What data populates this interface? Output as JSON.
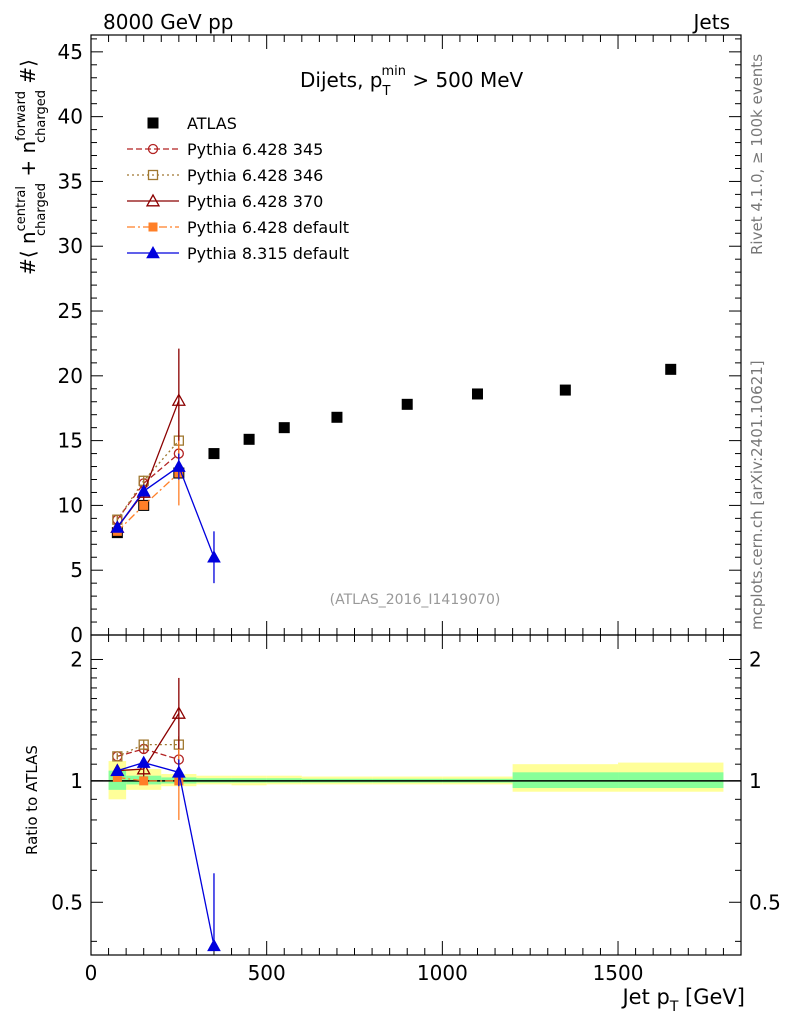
{
  "header": {
    "left_title": "8000 GeV pp",
    "right_title": "Jets",
    "plot_title_main": "Dijets, p",
    "plot_title_sub": "T",
    "plot_title_sup": "min",
    "plot_title_tail": " > 500 MeV",
    "ref_label": "(ATLAS_2016_I1419070)",
    "side_label_top": "Rivet 4.1.0, ≥ 100k events",
    "side_label_bottom": "mcplots.cern.ch [arXiv:2401.10621]"
  },
  "axes": {
    "ylabel_main": "#⟨ n",
    "ylabel_main_sup1": "central",
    "ylabel_main_sub1": "charged",
    "ylabel_main_mid": " + n",
    "ylabel_main_sup2": "forward",
    "ylabel_main_sub2": "charged",
    "ylabel_main_tail": " #⟩",
    "ylabel_ratio": "Ratio to ATLAS",
    "xlabel": "Jet p",
    "xlabel_sub": "T",
    "xlabel_tail": " [GeV]"
  },
  "chart_data": [
    {
      "type": "scatter",
      "panel": "main",
      "xlim": [
        0,
        1850
      ],
      "ylim": [
        0,
        46.3
      ],
      "yticks": [
        0,
        5,
        10,
        15,
        20,
        25,
        30,
        35,
        40,
        45
      ],
      "xticks": [
        0,
        500,
        1000,
        1500
      ],
      "series": [
        {
          "name": "ATLAS",
          "style": "data",
          "color": "#000000",
          "x": [
            75,
            150,
            250,
            350,
            450,
            550,
            700,
            900,
            1100,
            1350,
            1650
          ],
          "y": [
            7.9,
            10.0,
            12.5,
            14.0,
            15.1,
            16.0,
            16.8,
            17.8,
            18.6,
            18.9,
            20.5
          ]
        },
        {
          "name": "Pythia 6.428 345",
          "style": "circle",
          "color": "#b22222",
          "dash": "6,3",
          "x": [
            75,
            150,
            250
          ],
          "y": [
            8.9,
            11.7,
            14.0
          ],
          "err": [
            0.3,
            0.4,
            0.7
          ]
        },
        {
          "name": "Pythia 6.428 346",
          "style": "square",
          "color": "#a07830",
          "dash": "2,3",
          "x": [
            75,
            150,
            250
          ],
          "y": [
            8.9,
            11.9,
            15.0
          ],
          "err": [
            0.3,
            0.4,
            0.8
          ]
        },
        {
          "name": "Pythia 6.428 370",
          "style": "triangle-open",
          "color": "#8b0000",
          "dash": "",
          "x": [
            75,
            150,
            250
          ],
          "y": [
            8.3,
            11.0,
            18.1
          ],
          "err": [
            0.3,
            0.6,
            4.0
          ]
        },
        {
          "name": "Pythia 6.428 default",
          "style": "square-filled",
          "color": "#ff7f27",
          "dash": "8,3,2,3",
          "x": [
            75,
            150,
            250
          ],
          "y": [
            8.0,
            10.0,
            12.5
          ],
          "err": [
            0.3,
            0.3,
            2.5
          ]
        },
        {
          "name": "Pythia 8.315 default",
          "style": "triangle-filled",
          "color": "#0000dd",
          "dash": "",
          "x": [
            75,
            150,
            250,
            350
          ],
          "y": [
            8.3,
            11.1,
            13.0,
            6.0
          ],
          "err": [
            0.3,
            0.4,
            1.0,
            2.0
          ]
        }
      ],
      "legend_position": "top-left"
    },
    {
      "type": "scatter",
      "panel": "ratio",
      "xlim": [
        0,
        1850
      ],
      "ylim": [
        0.37,
        2.3
      ],
      "yscale": "log",
      "yticks": [
        0.5,
        1,
        2
      ],
      "bands": [
        {
          "x0": 50,
          "x1": 100,
          "yellow": [
            0.9,
            1.12
          ],
          "green": [
            0.95,
            1.06
          ]
        },
        {
          "x0": 100,
          "x1": 200,
          "yellow": [
            0.95,
            1.07
          ],
          "green": [
            0.98,
            1.03
          ]
        },
        {
          "x0": 200,
          "x1": 300,
          "yellow": [
            0.97,
            1.04
          ],
          "green": [
            0.985,
            1.02
          ]
        },
        {
          "x0": 300,
          "x1": 400,
          "yellow": [
            0.98,
            1.03
          ],
          "green": [
            0.99,
            1.015
          ]
        },
        {
          "x0": 400,
          "x1": 500,
          "yellow": [
            0.975,
            1.03
          ],
          "green": [
            0.99,
            1.015
          ]
        },
        {
          "x0": 500,
          "x1": 600,
          "yellow": [
            0.98,
            1.03
          ],
          "green": [
            0.99,
            1.015
          ]
        },
        {
          "x0": 600,
          "x1": 800,
          "yellow": [
            0.98,
            1.025
          ],
          "green": [
            0.99,
            1.012
          ]
        },
        {
          "x0": 800,
          "x1": 1000,
          "yellow": [
            0.98,
            1.025
          ],
          "green": [
            0.99,
            1.012
          ]
        },
        {
          "x0": 1000,
          "x1": 1200,
          "yellow": [
            0.98,
            1.025
          ],
          "green": [
            0.99,
            1.012
          ]
        },
        {
          "x0": 1200,
          "x1": 1500,
          "yellow": [
            0.94,
            1.1
          ],
          "green": [
            0.96,
            1.05
          ]
        },
        {
          "x0": 1500,
          "x1": 1800,
          "yellow": [
            0.94,
            1.11
          ],
          "green": [
            0.96,
            1.05
          ]
        }
      ],
      "series": [
        {
          "name": "Pythia 6.428 345",
          "x": [
            75,
            150,
            250
          ],
          "y": [
            1.15,
            1.2,
            1.13
          ],
          "err": [
            0.02,
            0.03,
            0.05
          ]
        },
        {
          "name": "Pythia 6.428 346",
          "x": [
            75,
            150,
            250
          ],
          "y": [
            1.15,
            1.23,
            1.23
          ],
          "err": [
            0.02,
            0.03,
            0.06
          ]
        },
        {
          "name": "Pythia 6.428 370",
          "x": [
            75,
            150,
            250
          ],
          "y": [
            1.06,
            1.07,
            1.47
          ],
          "err": [
            0.02,
            0.05,
            0.33
          ]
        },
        {
          "name": "Pythia 6.428 default",
          "x": [
            75,
            150,
            250
          ],
          "y": [
            1.02,
            1.0,
            1.0
          ],
          "err": [
            0.02,
            0.02,
            0.2
          ]
        },
        {
          "name": "Pythia 8.315 default",
          "x": [
            75,
            150,
            250,
            350
          ],
          "y": [
            1.06,
            1.11,
            1.05,
            0.39
          ],
          "err": [
            0.02,
            0.03,
            0.08,
            0.2
          ]
        }
      ]
    }
  ]
}
